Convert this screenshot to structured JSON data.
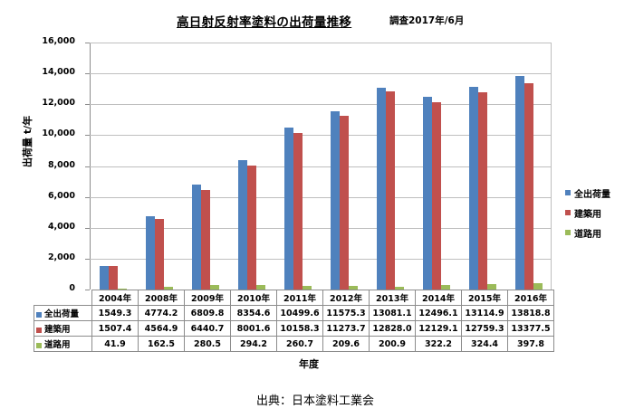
{
  "chart_data": {
    "type": "bar",
    "title": "高日射反射率塗料の出荷量推移",
    "subtitle": "調査2017年/6月",
    "xlabel": "年度",
    "ylabel": "出荷量 t/年",
    "ylim": [
      0,
      16000
    ],
    "yticks": [
      "0",
      "2,000",
      "4,000",
      "6,000",
      "8,000",
      "10,000",
      "12,000",
      "14,000",
      "16,000"
    ],
    "grid": true,
    "legend_position": "right",
    "categories": [
      "2004年",
      "2008年",
      "2009年",
      "2010年",
      "2011年",
      "2012年",
      "2013年",
      "2014年",
      "2015年",
      "2016年"
    ],
    "series": [
      {
        "name": "全出荷量",
        "color": "#4f81bd",
        "values": [
          1549.3,
          4774.2,
          6809.8,
          8354.6,
          10499.6,
          11575.3,
          13081.1,
          12496.1,
          13114.9,
          13818.8
        ],
        "labels": [
          "1549.3",
          "4774.2",
          "6809.8",
          "8354.6",
          "10499.6",
          "11575.3",
          "13081.1",
          "12496.1",
          "13114.9",
          "13818.8"
        ]
      },
      {
        "name": "建築用",
        "color": "#c0504d",
        "values": [
          1507.4,
          4564.9,
          6440.7,
          8001.6,
          10158.3,
          11273.7,
          12828.0,
          12129.1,
          12759.3,
          13377.5
        ],
        "labels": [
          "1507.4",
          "4564.9",
          "6440.7",
          "8001.6",
          "10158.3",
          "11273.7",
          "12828.0",
          "12129.1",
          "12759.3",
          "13377.5"
        ]
      },
      {
        "name": "道路用",
        "color": "#9bbb59",
        "values": [
          41.9,
          162.5,
          280.5,
          294.2,
          260.7,
          209.6,
          200.9,
          322.2,
          324.4,
          397.8
        ],
        "labels": [
          "41.9",
          "162.5",
          "280.5",
          "294.2",
          "260.7",
          "209.6",
          "200.9",
          "322.2",
          "324.4",
          "397.8"
        ]
      }
    ],
    "source": "出典：日本塗料工業会"
  }
}
